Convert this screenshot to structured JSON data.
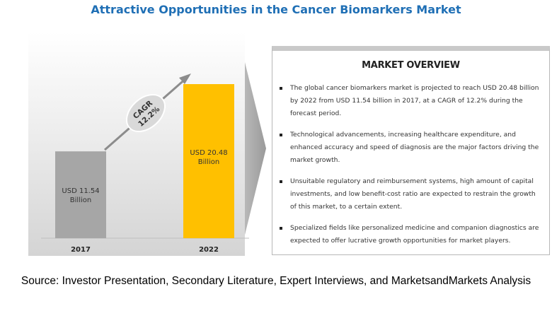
{
  "title": "Attractive Opportunities in the Cancer Biomarkers Market",
  "chart_data": {
    "type": "bar",
    "categories": [
      "2017",
      "2022"
    ],
    "values": [
      11.54,
      20.48
    ],
    "value_labels": [
      "USD 11.54 Billion",
      "USD 20.48 Billion"
    ],
    "bar_colors": [
      "#a6a6a6",
      "#ffc000"
    ],
    "cagr_label": "CAGR 12.2%",
    "ylim": [
      0,
      20.48
    ],
    "grid": false
  },
  "bar_label_lines": [
    [
      "USD 11.54",
      "Billion"
    ],
    [
      "USD 20.48",
      "Billion"
    ]
  ],
  "cagr_lines": [
    "CAGR",
    "12.2%"
  ],
  "overview": {
    "heading": "MARKET OVERVIEW",
    "items": [
      "The global cancer biomarkers market is projected to reach USD 20.48 billion by 2022 from USD 11.54 billion in 2017, at a CAGR of 12.2% during the forecast period.",
      "Technological advancements, increasing healthcare expenditure, and enhanced accuracy and speed of diagnosis are the major factors driving the market growth.",
      "Unsuitable regulatory and reimbursement systems, high amount of capital investments, and low benefit-cost ratio are expected to restrain the growth of this market, to a certain extent.",
      "Specialized fields like personalized medicine and companion diagnostics are expected to offer lucrative growth opportunities for market players."
    ]
  },
  "source": "Source: Investor Presentation, Secondary Literature, Expert Interviews, and MarketsandMarkets Analysis"
}
